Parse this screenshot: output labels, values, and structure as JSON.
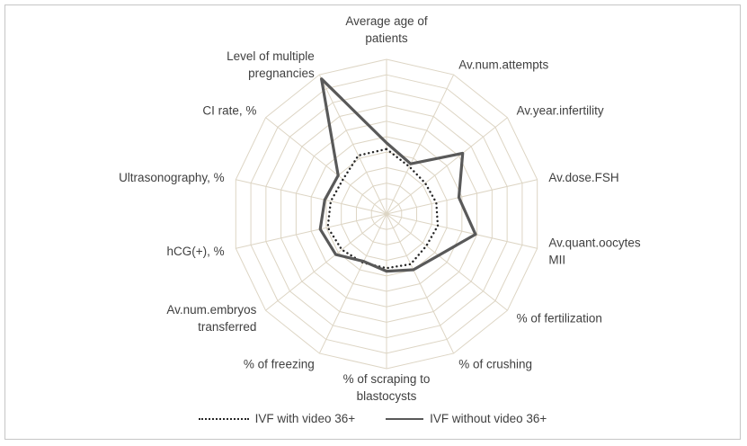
{
  "figure": {
    "border_color": "#c6c6c6",
    "background": "#ffffff"
  },
  "chart_data": {
    "type": "radar",
    "categories": [
      "Average age of patients",
      "Av.num.attempts",
      "Av.year.infertility",
      "Av.dose.FSH",
      "Av.quant.oocytes MII",
      "% of fertilization",
      "% of crushing",
      "% of scraping to blastocysts",
      "% of freezing",
      "Av.num.embryos transferred",
      "hCG(+), %",
      "Ultrasonography, %",
      "CI rate, %",
      "Level of multiple pregnancies"
    ],
    "series": [
      {
        "name": "IVF with video 36+",
        "style": "dotted",
        "color": "#262626",
        "values": [
          4.2,
          3.4,
          3.2,
          3.3,
          3.4,
          3.3,
          3.6,
          3.5,
          3.5,
          3.7,
          3.9,
          3.7,
          3.6,
          4.2
        ]
      },
      {
        "name": "IVF without video 36+",
        "style": "solid",
        "color": "#595959",
        "values": [
          4.6,
          3.6,
          6.3,
          4.8,
          5.9,
          4.3,
          4.0,
          3.7,
          3.4,
          4.2,
          4.4,
          4.1,
          4.0,
          9.7
        ]
      }
    ],
    "rings": 10,
    "rmax": 10,
    "grid_color": "#ddd5c4",
    "label_color": "#404040",
    "legend_position": "bottom"
  }
}
